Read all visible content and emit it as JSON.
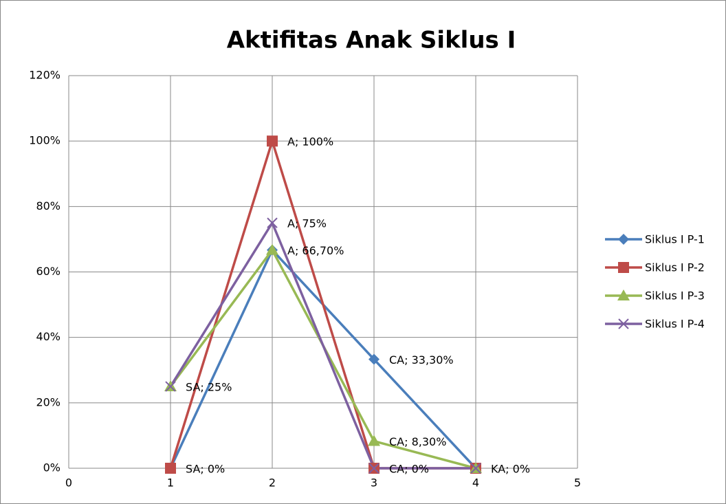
{
  "chart_data": {
    "type": "line",
    "title": "Aktifitas Anak Siklus I",
    "x": [
      1,
      2,
      3,
      4
    ],
    "xlim": [
      0,
      5
    ],
    "xticks": [
      0,
      1,
      2,
      3,
      4,
      5
    ],
    "ylim": [
      0,
      120
    ],
    "yticks": [
      {
        "value": 0,
        "label": "0%"
      },
      {
        "value": 20,
        "label": "20%"
      },
      {
        "value": 40,
        "label": "40%"
      },
      {
        "value": 60,
        "label": "60%"
      },
      {
        "value": 80,
        "label": "80%"
      },
      {
        "value": 100,
        "label": "100%"
      },
      {
        "value": 120,
        "label": "120%"
      }
    ],
    "grid": true,
    "legend": "right",
    "series": [
      {
        "name": "Siklus I P-1",
        "color": "#4a7ebb",
        "marker": "diamond",
        "values": [
          0,
          66.7,
          33.3,
          0
        ],
        "value_labels": [
          null,
          "A; 66,70%",
          "CA; 33,30%",
          null
        ]
      },
      {
        "name": "Siklus I P-2",
        "color": "#be4b48",
        "marker": "square",
        "values": [
          0,
          100,
          0,
          0
        ],
        "value_labels": [
          "SA; 0%",
          "A; 100%",
          "CA; 0%",
          "KA; 0%"
        ]
      },
      {
        "name": "Siklus I P-3",
        "color": "#98b954",
        "marker": "triangle",
        "values": [
          25,
          66.7,
          8.3,
          0
        ],
        "value_labels": [
          null,
          null,
          "CA; 8,30%",
          null
        ]
      },
      {
        "name": "Siklus I P-4",
        "color": "#7d60a0",
        "marker": "x",
        "values": [
          25,
          75,
          0,
          0
        ],
        "value_labels": [
          "SA; 25%",
          "A; 75%",
          null,
          null
        ]
      }
    ]
  }
}
